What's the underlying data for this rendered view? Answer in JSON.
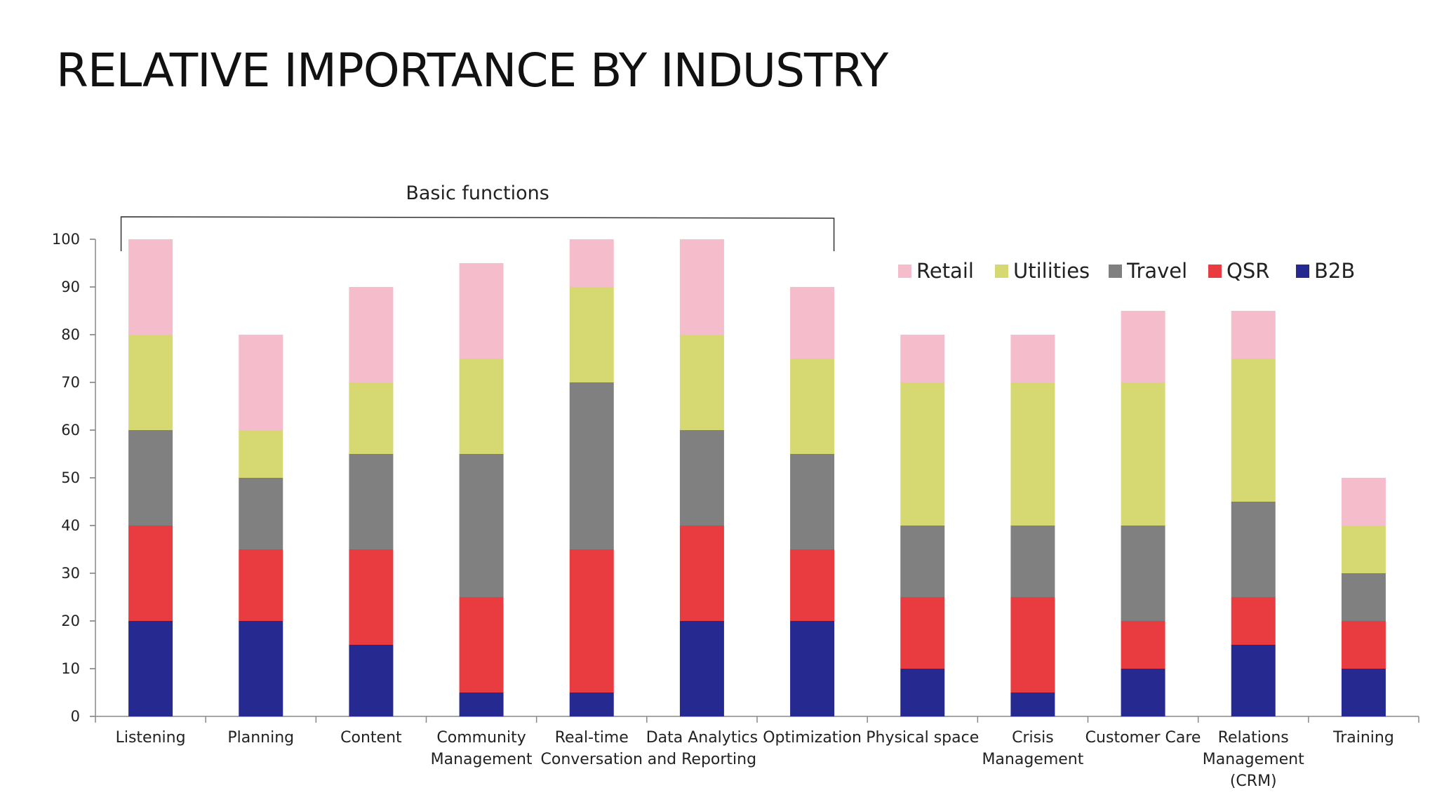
{
  "title": "RELATIVE IMPORTANCE BY INDUSTRY",
  "chart_data": {
    "type": "bar",
    "stacked": true,
    "title": "RELATIVE IMPORTANCE BY INDUSTRY",
    "categories": [
      [
        "Listening"
      ],
      [
        "Planning"
      ],
      [
        "Content"
      ],
      [
        "Community",
        "Management"
      ],
      [
        "Real-time",
        "Conversation"
      ],
      [
        "Data Analytics",
        "and Reporting"
      ],
      [
        "Optimization"
      ],
      [
        "Physical space"
      ],
      [
        "Crisis",
        "Management"
      ],
      [
        "Customer Care"
      ],
      [
        "Relations",
        "Management",
        "(CRM)"
      ],
      [
        "Training"
      ]
    ],
    "series": [
      {
        "name": "B2B",
        "color": "#262990",
        "values": [
          20,
          20,
          15,
          5,
          5,
          20,
          20,
          10,
          5,
          10,
          15,
          10
        ]
      },
      {
        "name": "QSR",
        "color": "#e93c40",
        "values": [
          20,
          15,
          20,
          20,
          30,
          20,
          15,
          15,
          20,
          10,
          10,
          10
        ]
      },
      {
        "name": "Travel",
        "color": "#818081",
        "values": [
          20,
          15,
          20,
          30,
          35,
          20,
          20,
          15,
          15,
          20,
          20,
          10
        ]
      },
      {
        "name": "Utilities",
        "color": "#d6d972",
        "values": [
          20,
          10,
          15,
          20,
          20,
          20,
          20,
          30,
          30,
          30,
          30,
          10
        ]
      },
      {
        "name": "Retail",
        "color": "#f5bccb",
        "values": [
          20,
          20,
          20,
          20,
          10,
          20,
          15,
          10,
          10,
          15,
          10,
          10
        ]
      }
    ],
    "legend_order": [
      "Retail",
      "Utilities",
      "Travel",
      "QSR",
      "B2B"
    ],
    "legend_position": "top-right",
    "ylim": [
      0,
      100
    ],
    "yticks": [
      0,
      10,
      20,
      30,
      40,
      50,
      60,
      70,
      80,
      90,
      100
    ],
    "xlabel": "",
    "ylabel": "",
    "grid": false,
    "annotation": {
      "text": "Basic functions",
      "span_categories": [
        0,
        6
      ]
    }
  }
}
